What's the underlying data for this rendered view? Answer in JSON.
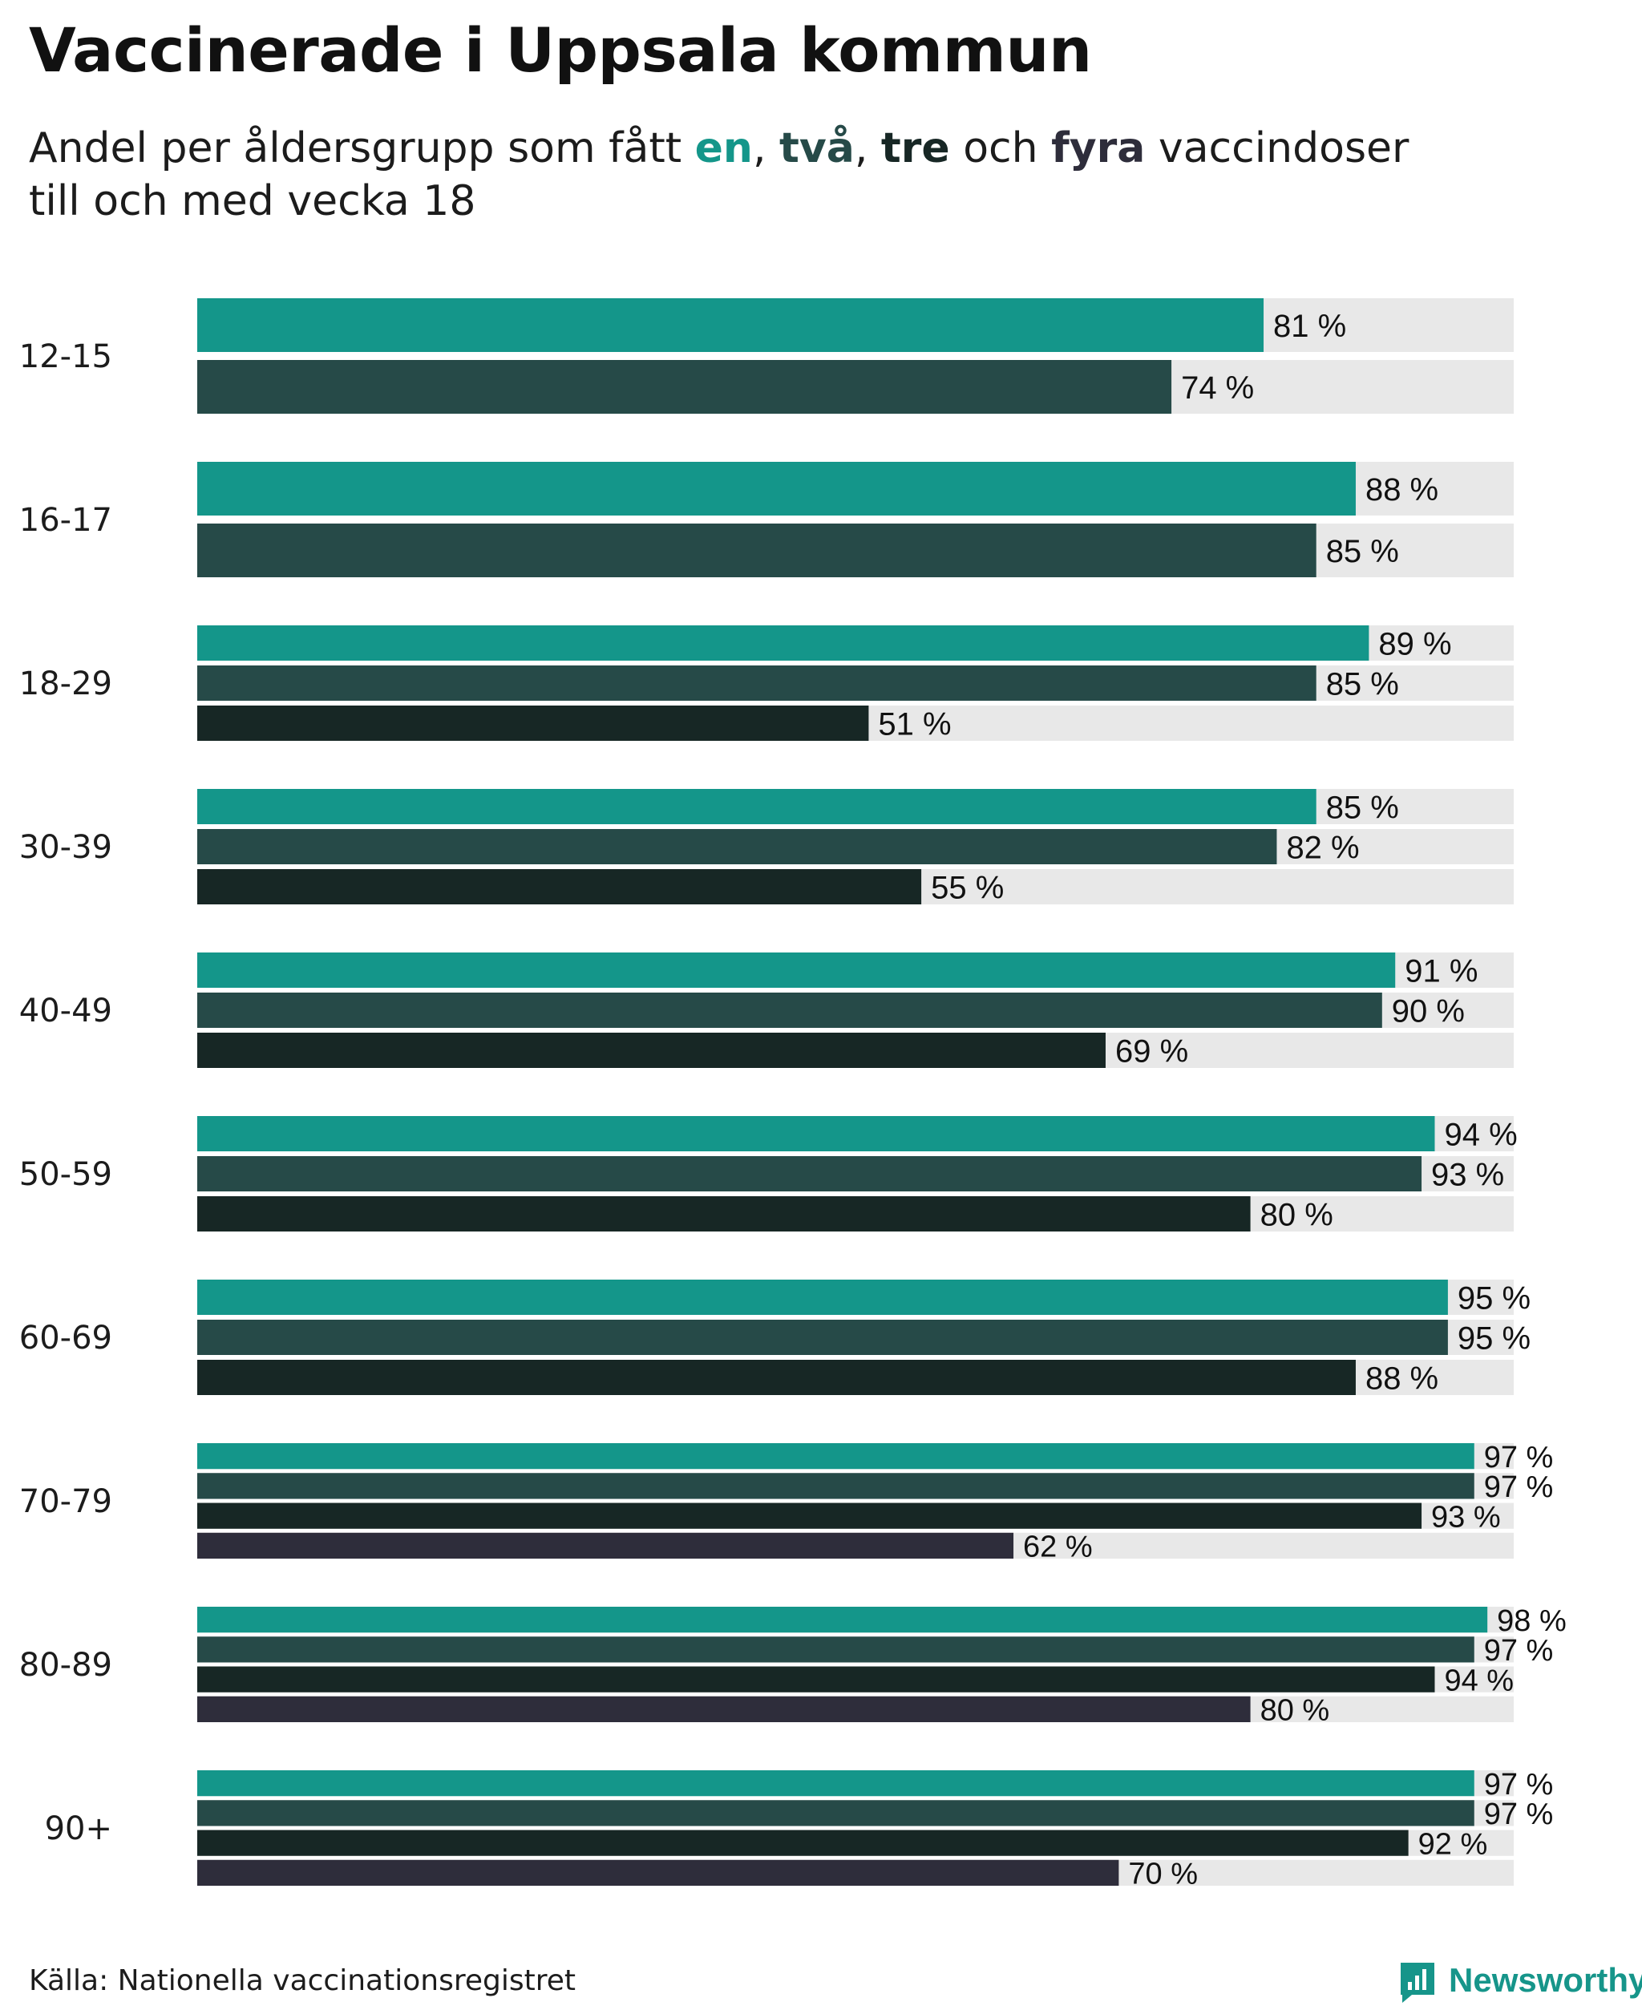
{
  "title": "Vaccinerade i Uppsala kommun",
  "subtitle": {
    "pre": "Andel per åldersgrupp som fått ",
    "dose1": "en",
    "sep1": ", ",
    "dose2": "två",
    "sep2": ", ",
    "dose3": "tre",
    "mid": " och ",
    "dose4": "fyra",
    "post": " vaccindoser",
    "line2": "till och med vecka 18"
  },
  "colors": {
    "dose1": "#14968a",
    "dose2": "#264a48",
    "dose3": "#172725",
    "dose4": "#2e2d3b",
    "track": "#e8e8e8"
  },
  "chart_data": {
    "type": "bar",
    "orientation": "horizontal",
    "title": "Vaccinerade i Uppsala kommun",
    "xlabel": "",
    "ylabel": "",
    "xlim": [
      0,
      100
    ],
    "value_suffix": " %",
    "grid": false,
    "categories": [
      "12-15",
      "16-17",
      "18-29",
      "30-39",
      "40-49",
      "50-59",
      "60-69",
      "70-79",
      "80-89",
      "90+"
    ],
    "series": [
      {
        "name": "en",
        "values": [
          81,
          88,
          89,
          85,
          91,
          94,
          95,
          97,
          98,
          97
        ]
      },
      {
        "name": "två",
        "values": [
          74,
          85,
          85,
          82,
          90,
          93,
          95,
          97,
          97,
          97
        ]
      },
      {
        "name": "tre",
        "values": [
          null,
          null,
          51,
          55,
          69,
          80,
          88,
          93,
          94,
          92
        ]
      },
      {
        "name": "fyra",
        "values": [
          null,
          null,
          null,
          null,
          null,
          null,
          null,
          62,
          80,
          70
        ]
      }
    ]
  },
  "source": "Källa: Nationella vaccinationsregistret",
  "brand": "Newsworthy"
}
